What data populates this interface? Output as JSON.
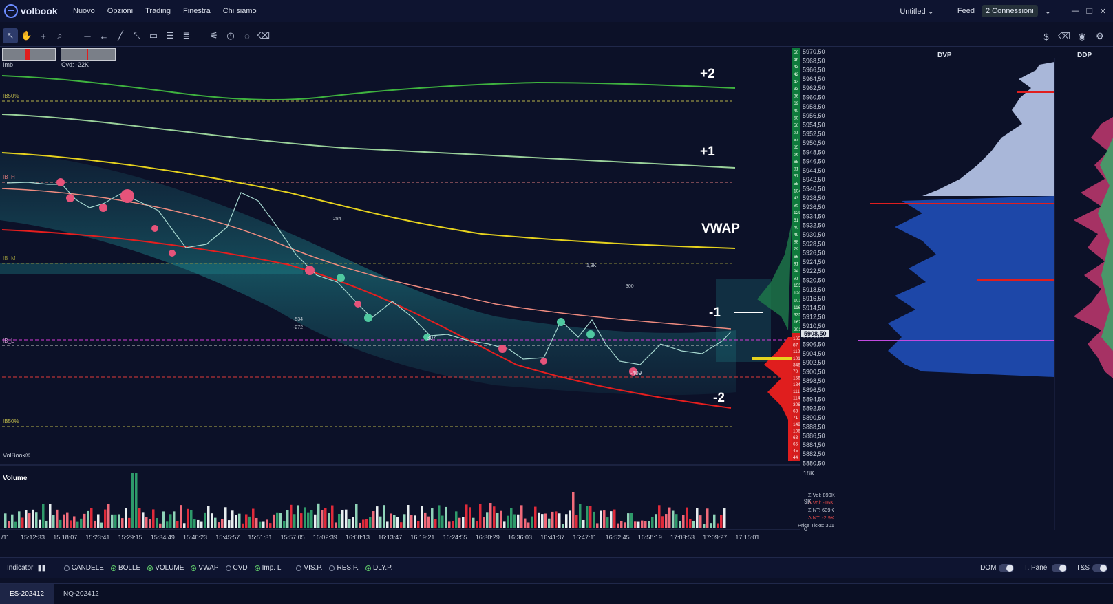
{
  "app": {
    "name": "volbook"
  },
  "menu": [
    "Nuovo",
    "Opzioni",
    "Trading",
    "Finestra",
    "Chi siamo"
  ],
  "header": {
    "workspace": "Untitled",
    "feed_label": "Feed",
    "connections": "2 Connessioni"
  },
  "chart": {
    "imb_label": "Imb",
    "cvd_label": "Cvd: -22K",
    "watermark": "VolBook®",
    "volume_title": "Volume",
    "level_labels": {
      "plus2": "+2",
      "plus1": "+1",
      "vwap": "VWAP",
      "minus1": "-1",
      "minus2": "-2"
    },
    "ib_labels": {
      "ib150_top": "IB50%",
      "ib_h": "IB_H",
      "ib_m": "IB_M",
      "ib_l": "IB_L",
      "ib150_bot": "IB50%"
    },
    "annotations": [
      "284",
      "1,3K",
      "300",
      "-534",
      "-272",
      "307",
      "-409"
    ],
    "time_axis": [
      "/11",
      "15:12:33",
      "15:18:07",
      "15:23:41",
      "15:29:15",
      "15:34:49",
      "15:40:23",
      "15:45:57",
      "15:51:31",
      "15:57:05",
      "16:02:39",
      "16:08:13",
      "16:13:47",
      "16:19:21",
      "16:24:55",
      "16:30:29",
      "16:36:03",
      "16:41:37",
      "16:47:11",
      "16:52:45",
      "16:58:19",
      "17:03:53",
      "17:09:27",
      "17:15:01"
    ],
    "price_axis": [
      "5970,50",
      "5968,50",
      "5966,50",
      "5964,50",
      "5962,50",
      "5960,50",
      "5958,50",
      "5956,50",
      "5954,50",
      "5952,50",
      "5950,50",
      "5948,50",
      "5946,50",
      "5944,50",
      "5942,50",
      "5940,50",
      "5938,50",
      "5936,50",
      "5934,50",
      "5932,50",
      "5930,50",
      "5928,50",
      "5926,50",
      "5924,50",
      "5922,50",
      "5920,50",
      "5918,50",
      "5916,50",
      "5914,50",
      "5912,50",
      "5910,50",
      "5908,50",
      "5906,50",
      "5904,50",
      "5902,50",
      "5900,50",
      "5898,50",
      "5896,50",
      "5894,50",
      "5892,50",
      "5890,50",
      "5888,50",
      "5886,50",
      "5884,50",
      "5882,50",
      "5880,50"
    ],
    "current_price": "5908,50",
    "dom_green": [
      "50",
      "46",
      "43",
      "42",
      "43",
      "33",
      "36",
      "69",
      "40",
      "50",
      "56",
      "51",
      "57",
      "85",
      "56",
      "65",
      "81",
      "57",
      "55",
      "104",
      "43",
      "85",
      "129",
      "51",
      "40",
      "49",
      "88",
      "79",
      "66",
      "91",
      "94",
      "91",
      "155",
      "120",
      "101",
      "116",
      "335",
      "167",
      "201"
    ],
    "dom_red": [
      "165",
      "87",
      "112",
      "101",
      "346",
      "70",
      "156",
      "184",
      "111",
      "114",
      "306",
      "63",
      "71",
      "149",
      "106",
      "63",
      "65",
      "45",
      "44"
    ],
    "vol_axis": {
      "top": "18K",
      "mid": "9K",
      "bottom": "0"
    },
    "vol_stats": [
      "Σ Vol: 890K",
      "Δ Vol: -16K",
      "Σ NT: 639K",
      "Δ NT: -2,9K",
      "Price Ticks: 301"
    ],
    "profiles": {
      "dvp": "DVP",
      "ddp": "DDP"
    }
  },
  "indicators": {
    "label": "Indicatori",
    "options": [
      {
        "label": "CANDELE",
        "on": false
      },
      {
        "label": "BOLLE",
        "on": true
      },
      {
        "label": "VOLUME",
        "on": true
      },
      {
        "label": "VWAP",
        "on": true
      },
      {
        "label": "CVD",
        "on": false
      },
      {
        "label": "Imp. L",
        "on": true
      },
      {
        "label": "VIS.P.",
        "on": false
      },
      {
        "label": "RES.P.",
        "on": false
      },
      {
        "label": "DLY.P.",
        "on": true
      }
    ],
    "toggles": [
      "DOM",
      "T. Panel",
      "T&S"
    ]
  },
  "tabs": [
    "ES-202412",
    "NQ-202412"
  ]
}
